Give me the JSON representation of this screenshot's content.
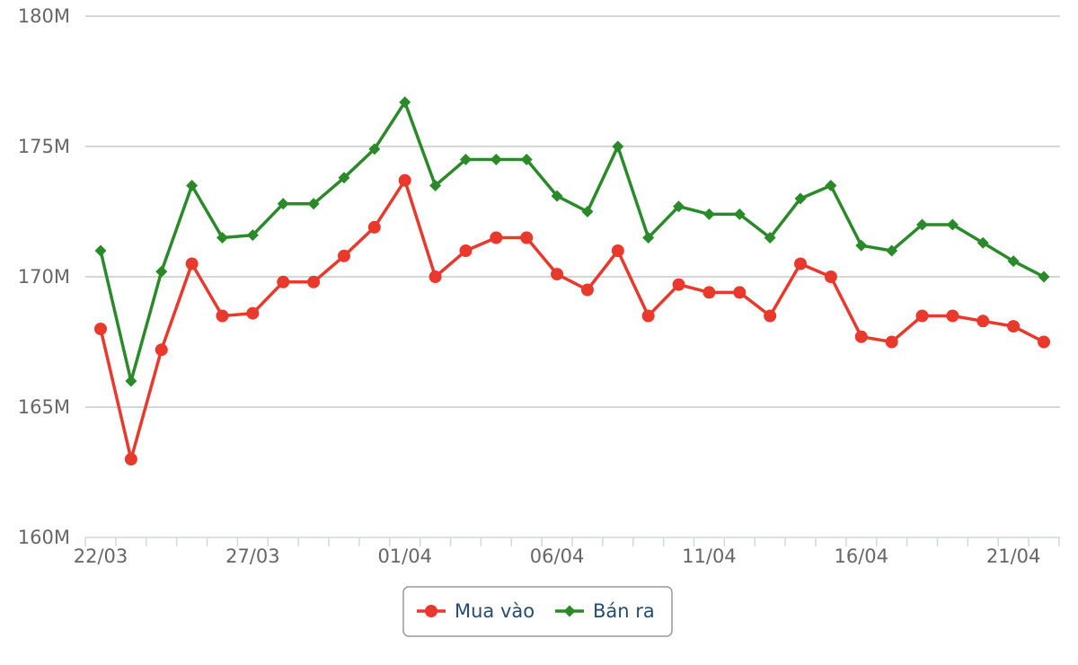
{
  "chart_data": {
    "type": "line",
    "x": [
      "22/03",
      "23/03",
      "24/03",
      "25/03",
      "26/03",
      "27/03",
      "28/03",
      "29/03",
      "30/03",
      "31/03",
      "01/04",
      "02/04",
      "03/04",
      "04/04",
      "05/04",
      "06/04",
      "07/04",
      "08/04",
      "09/04",
      "10/04",
      "11/04",
      "12/04",
      "13/04",
      "14/04",
      "15/04",
      "16/04",
      "17/04",
      "18/04",
      "19/04",
      "20/04",
      "21/04",
      "22/04"
    ],
    "x_tick_labels": [
      "22/03",
      "27/03",
      "01/04",
      "06/04",
      "11/04",
      "16/04",
      "21/04"
    ],
    "y_tick_labels": [
      "160M",
      "165M",
      "170M",
      "175M",
      "180M"
    ],
    "ylim": [
      160,
      180
    ],
    "y_unit": "M",
    "grid": true,
    "legend_position": "bottom-center",
    "series": [
      {
        "name": "Mua vào",
        "color": "#e8392c",
        "marker": "circle",
        "values": [
          168.0,
          163.0,
          167.2,
          170.5,
          168.5,
          168.6,
          169.8,
          169.8,
          170.8,
          171.9,
          173.7,
          170.0,
          171.0,
          171.5,
          171.5,
          170.1,
          169.5,
          171.0,
          168.5,
          169.7,
          169.4,
          169.4,
          168.5,
          170.5,
          170.0,
          167.7,
          167.5,
          168.5,
          168.5,
          168.3,
          168.1,
          167.5
        ]
      },
      {
        "name": "Bán ra",
        "color": "#2a8a2a",
        "marker": "diamond",
        "values": [
          171.0,
          166.0,
          170.2,
          173.5,
          171.5,
          171.6,
          172.8,
          172.8,
          173.8,
          174.9,
          176.7,
          173.5,
          174.5,
          174.5,
          174.5,
          173.1,
          172.5,
          175.0,
          171.5,
          172.7,
          172.4,
          172.4,
          171.5,
          173.0,
          173.5,
          171.2,
          171.0,
          172.0,
          172.0,
          171.3,
          170.6,
          170.0
        ]
      }
    ]
  }
}
